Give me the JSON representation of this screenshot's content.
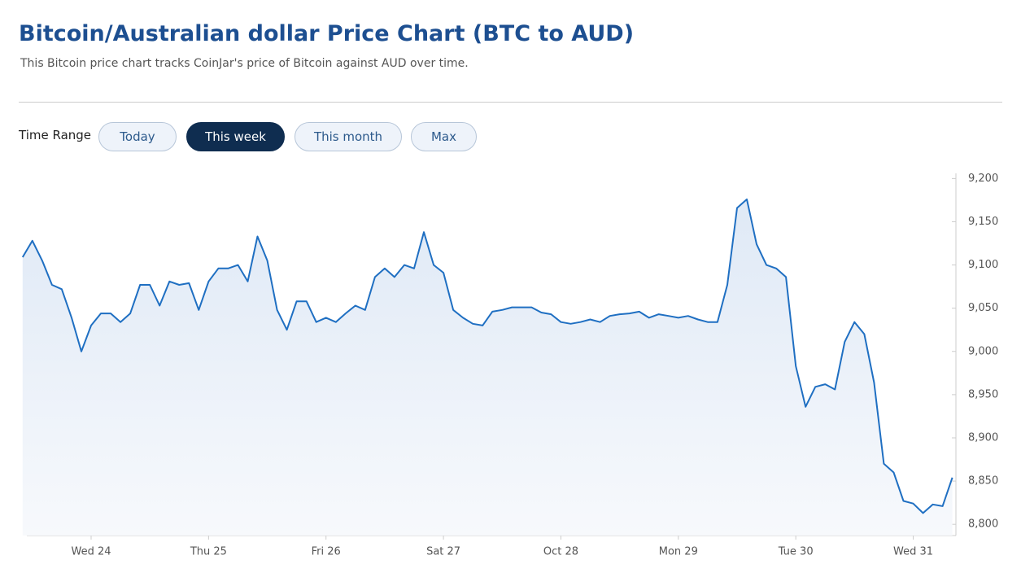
{
  "header": {
    "title": "Bitcoin/Australian dollar Price Chart (BTC to AUD)",
    "subtitle": "This Bitcoin price chart tracks CoinJar's price of Bitcoin against AUD over time."
  },
  "controls": {
    "label": "Time Range",
    "buttons": [
      "Today",
      "This week",
      "This month",
      "Max"
    ]
  },
  "chart_data": {
    "type": "line",
    "categories": [
      null,
      null,
      null,
      null,
      null,
      null,
      null,
      "Wed 24",
      null,
      null,
      null,
      null,
      null,
      null,
      null,
      null,
      null,
      null,
      null,
      "Thu 25",
      null,
      null,
      null,
      null,
      null,
      null,
      null,
      null,
      null,
      null,
      null,
      "Fri 26",
      null,
      null,
      null,
      null,
      null,
      null,
      null,
      null,
      null,
      null,
      null,
      "Sat 27",
      null,
      null,
      null,
      null,
      null,
      null,
      null,
      null,
      null,
      null,
      null,
      "Oct 28",
      null,
      null,
      null,
      null,
      null,
      null,
      null,
      null,
      null,
      null,
      null,
      "Mon 29",
      null,
      null,
      null,
      null,
      null,
      null,
      null,
      null,
      null,
      null,
      null,
      "Tue 30",
      null,
      null,
      null,
      null,
      null,
      null,
      null,
      null,
      null,
      null,
      null,
      "Wed 31",
      null,
      null,
      null,
      null
    ],
    "series": [
      {
        "name": "BTC/AUD",
        "color": "#1f6fc2",
        "values": [
          9109,
          9128,
          9105,
          9077,
          9072,
          9039,
          9000,
          9030,
          9044,
          9044,
          9034,
          9044,
          9077,
          9077,
          9053,
          9081,
          9077,
          9079,
          9048,
          9081,
          9096,
          9096,
          9100,
          9081,
          9133,
          9105,
          9048,
          9025,
          9058,
          9058,
          9034,
          9039,
          9034,
          9044,
          9053,
          9048,
          9086,
          9096,
          9086,
          9100,
          9096,
          9138,
          9100,
          9091,
          9048,
          9039,
          9032,
          9030,
          9046,
          9048,
          9051,
          9051,
          9051,
          9045,
          9043,
          9034,
          9032,
          9034,
          9037,
          9034,
          9041,
          9043,
          9044,
          9046,
          9039,
          9043,
          9041,
          9039,
          9041,
          9037,
          9034,
          9034,
          9077,
          9166,
          9176,
          9124,
          9100,
          9096,
          9086,
          8983,
          8936,
          8959,
          8962,
          8956,
          9011,
          9034,
          9020,
          8964,
          8870,
          8860,
          8827,
          8824,
          8813,
          8823,
          8821,
          8854
        ]
      }
    ],
    "ylim": [
      8787,
      9206
    ],
    "yticks": [
      {
        "value": 8800,
        "label": "8,800"
      },
      {
        "value": 8850,
        "label": "8,850"
      },
      {
        "value": 8900,
        "label": "8,900"
      },
      {
        "value": 8950,
        "label": "8,950"
      },
      {
        "value": 9000,
        "label": "9,000"
      },
      {
        "value": 9050,
        "label": "9,050"
      },
      {
        "value": 9100,
        "label": "9,100"
      },
      {
        "value": 9150,
        "label": "9,150"
      },
      {
        "value": 9200,
        "label": "9,200"
      }
    ]
  }
}
